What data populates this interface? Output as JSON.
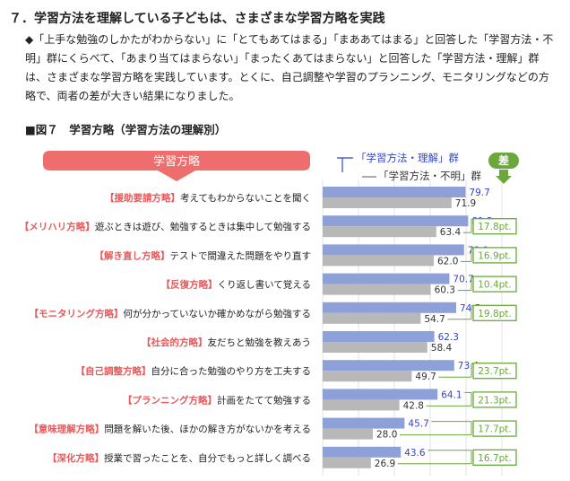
{
  "section_heading": "７．学習方法を理解している子どもは、さまざまな学習方略を実践",
  "paragraph": "◆「上手な勉強のしかたがわからない」に「とてもあてはまる」「まああてはまる」と回答した「学習方法・不明」群にくらべて、「あまり当てはまらない」「まったくあてはまらない」と回答した「学習方法・理解」群は、さまざまな学習方略を実践しています。とくに、自己調整や学習のプランニング、モニタリングなどの方略で、両者の差が大きい結果になりました。",
  "figure_title": "■図７　学習方略（学習方法の理解別）",
  "colors": {
    "understand": "#8da0d8",
    "unclear": "#b8b8b8",
    "accent": "#e8595b",
    "header_bg": "#ee6e6e",
    "diff": "#6aa83b",
    "blue_text": "#3344cc"
  },
  "chart_data": {
    "type": "bar",
    "orientation": "horizontal",
    "header_label": "学習方略",
    "diff_header": "差",
    "xlim": [
      0,
      100
    ],
    "series": [
      {
        "name": "「学習方法・理解」群",
        "values": [
          79.7,
          81.2,
          78.9,
          70.7,
          74.5,
          62.3,
          73.4,
          64.1,
          45.7,
          43.6
        ]
      },
      {
        "name": "「学習方法・不明」群",
        "values": [
          71.9,
          63.4,
          62.0,
          60.3,
          54.7,
          58.4,
          49.7,
          42.8,
          28.0,
          26.9
        ]
      }
    ],
    "categories": [
      {
        "tag": "【援助要請方略】",
        "desc": "考えてもわからないことを聞く"
      },
      {
        "tag": "【メリハリ方略】",
        "desc": "遊ぶときは遊び、勉強するときは集中して勉強する"
      },
      {
        "tag": "【解き直し方略】",
        "desc": "テストで間違えた問題をやり直す"
      },
      {
        "tag": "【反復方略】",
        "desc": "くり返し書いて覚える"
      },
      {
        "tag": "【モニタリング方略】",
        "desc": "何が分かっていないか確かめながら勉強する"
      },
      {
        "tag": "【社会的方略】",
        "desc": "友だちと勉強を教えあう"
      },
      {
        "tag": "【自己調整方略】",
        "desc": "自分に合った勉強のやり方を工夫する"
      },
      {
        "tag": "【プランニング方略】",
        "desc": "計画をたてて勉強する"
      },
      {
        "tag": "【意味理解方略】",
        "desc": "問題を解いた後、ほかの解き方がないかを考える"
      },
      {
        "tag": "【深化方略】",
        "desc": "授業で習ったことを、自分でもっと詳しく調べる"
      }
    ],
    "value_labels_understand": [
      "79.7",
      "81.2",
      "78.9",
      "70.7",
      "74.5",
      "62.3",
      "73.4",
      "64.1",
      "45.7",
      "43.6"
    ],
    "value_labels_unclear": [
      "71.9",
      "63.4",
      "62.0",
      "60.3",
      "54.7",
      "58.4",
      "49.7",
      "42.8",
      "28.0",
      "26.9"
    ],
    "diff_labels": [
      "",
      "17.8pt.",
      "16.9pt.",
      "10.4pt.",
      "19.8pt.",
      "",
      "23.7pt.",
      "21.3pt.",
      "17.7pt.",
      "16.7pt."
    ]
  }
}
